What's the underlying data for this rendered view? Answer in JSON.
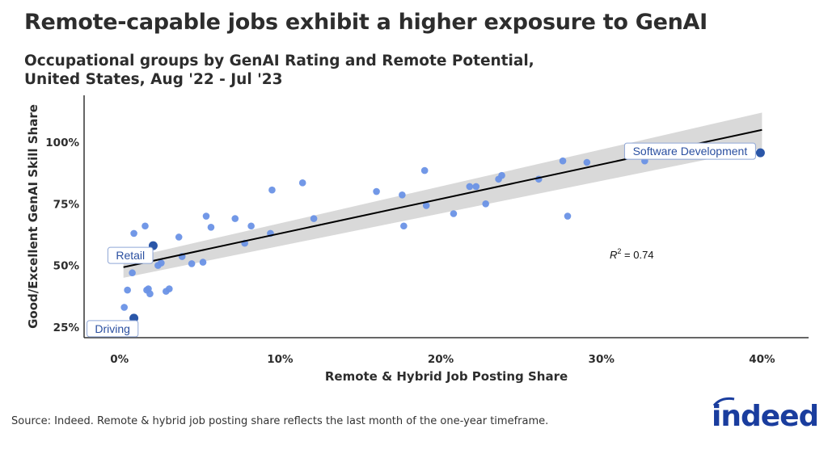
{
  "title": "Remote-capable jobs exhibit a higher exposure to GenAI",
  "subtitle_line1": "Occupational groups by GenAI Rating and Remote Potential,",
  "subtitle_line2": "United States, Aug '22 - Jul '23",
  "source": "Source: Indeed. Remote & hybrid job posting share reflects the last month of the one-year timeframe.",
  "logo": "indeed",
  "colors": {
    "point": "#6a92e6",
    "highlight": "#2a56a8",
    "line": "#000000",
    "band": "#d9d9d9",
    "logo": "#1a3d9e",
    "label_text": "#2a4fa0"
  },
  "chart_data": {
    "type": "scatter",
    "title": "Remote-capable jobs exhibit a higher exposure to GenAI",
    "xlabel": "Remote & Hybrid Job Posting Share",
    "ylabel": "Good/Excellent GenAI Skill Share",
    "xlim": [
      -2.2,
      42.9
    ],
    "ylim": [
      20.7,
      119
    ],
    "xticks": [
      0,
      10,
      20,
      30,
      40
    ],
    "xtick_labels": [
      "0%",
      "10%",
      "20%",
      "30%",
      "40%"
    ],
    "yticks": [
      25,
      50,
      75,
      100
    ],
    "ytick_labels": [
      "25%",
      "50%",
      "75%",
      "100%"
    ],
    "grid": false,
    "annotation": {
      "text": "R",
      "sup": "2",
      "value": " = 0.74",
      "x": 30.5,
      "y": 53
    },
    "trendline": {
      "x": [
        0.25,
        40
      ],
      "y": [
        49.3,
        105
      ]
    },
    "confidence_band": {
      "x": [
        0.25,
        40
      ],
      "upper": [
        52.5,
        112
      ],
      "lower": [
        45,
        97.5
      ]
    },
    "points": [
      [
        0.3,
        33
      ],
      [
        0.5,
        40
      ],
      [
        0.8,
        47
      ],
      [
        0.9,
        63
      ],
      [
        1.6,
        66
      ],
      [
        1.7,
        40
      ],
      [
        1.8,
        40.5
      ],
      [
        1.9,
        38.5
      ],
      [
        2.4,
        50
      ],
      [
        2.6,
        51
      ],
      [
        2.9,
        39.5
      ],
      [
        3.1,
        40.5
      ],
      [
        3.7,
        61.5
      ],
      [
        3.9,
        53.6
      ],
      [
        4.5,
        50.7
      ],
      [
        5.2,
        51.3
      ],
      [
        5.4,
        70
      ],
      [
        5.7,
        65.5
      ],
      [
        7.2,
        69
      ],
      [
        7.8,
        59
      ],
      [
        8.2,
        66
      ],
      [
        9.4,
        63
      ],
      [
        9.5,
        80.6
      ],
      [
        11.4,
        83.5
      ],
      [
        12.1,
        69
      ],
      [
        16.0,
        80
      ],
      [
        17.6,
        78.6
      ],
      [
        17.7,
        66
      ],
      [
        19.0,
        88.5
      ],
      [
        19.1,
        74.3
      ],
      [
        20.8,
        71
      ],
      [
        21.8,
        82
      ],
      [
        22.2,
        82
      ],
      [
        22.8,
        75
      ],
      [
        23.6,
        85
      ],
      [
        23.8,
        86.5
      ],
      [
        26.1,
        85
      ],
      [
        27.6,
        92.4
      ],
      [
        27.9,
        70
      ],
      [
        29.1,
        91.8
      ],
      [
        32.7,
        92.4
      ]
    ],
    "highlighted": [
      {
        "label": "Driving",
        "x": 0.9,
        "y": 28.6
      },
      {
        "label": "Retail",
        "x": 2.1,
        "y": 58
      },
      {
        "label": "Software Development",
        "x": 39.9,
        "y": 95.7
      }
    ]
  }
}
